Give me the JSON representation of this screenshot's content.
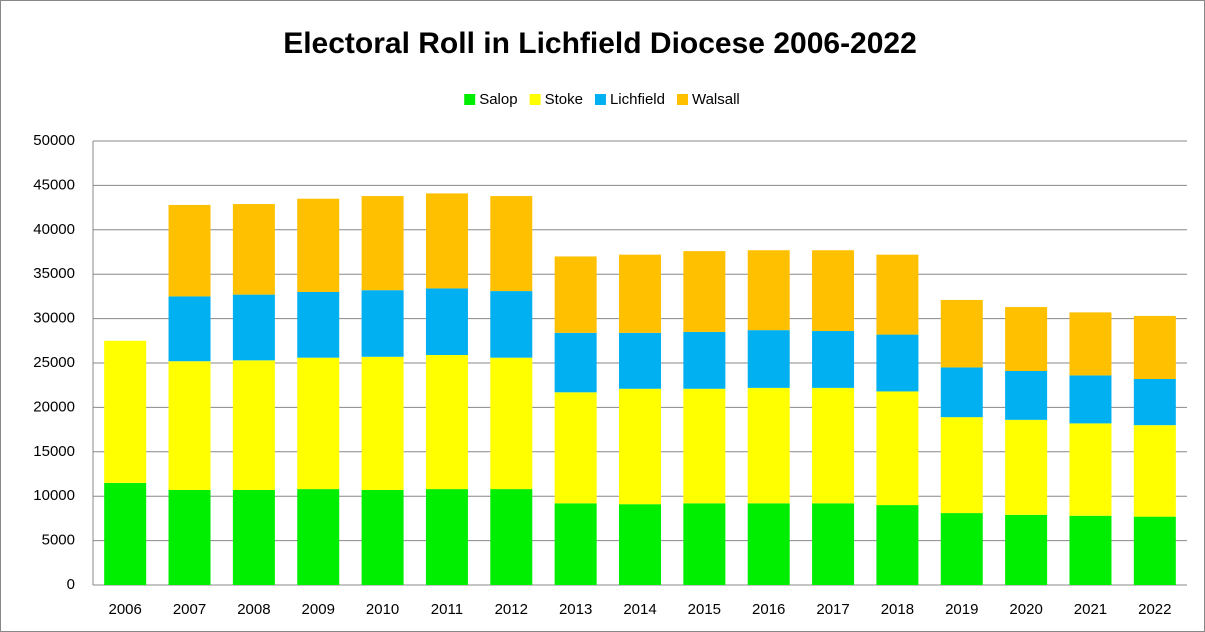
{
  "chart_data": {
    "type": "stacked_bar",
    "title": "Electoral Roll in Lichfield Diocese 2006-2022",
    "categories": [
      "2006",
      "2007",
      "2008",
      "2009",
      "2010",
      "2011",
      "2012",
      "2013",
      "2014",
      "2015",
      "2016",
      "2017",
      "2018",
      "2019",
      "2020",
      "2021",
      "2022"
    ],
    "series": [
      {
        "name": "Salop",
        "color": "#00ee00",
        "values": [
          11500,
          10700,
          10700,
          10800,
          10700,
          10800,
          10800,
          9200,
          9100,
          9200,
          9200,
          9200,
          9000,
          8100,
          7900,
          7800,
          7700
        ]
      },
      {
        "name": "Stoke",
        "color": "#ffff00",
        "values": [
          16000,
          14500,
          14600,
          14800,
          15000,
          15100,
          14800,
          12500,
          13000,
          12900,
          13000,
          13000,
          12800,
          10800,
          10700,
          10400,
          10300
        ]
      },
      {
        "name": "Lichfield",
        "color": "#00b0f0",
        "values": [
          0,
          7300,
          7400,
          7400,
          7500,
          7500,
          7500,
          6700,
          6300,
          6400,
          6500,
          6400,
          6400,
          5600,
          5500,
          5400,
          5200
        ]
      },
      {
        "name": "Walsall",
        "color": "#ffc000",
        "values": [
          0,
          10300,
          10200,
          10500,
          10600,
          10700,
          10700,
          8600,
          8800,
          9100,
          9000,
          9100,
          9000,
          7600,
          7200,
          7100,
          7100
        ]
      }
    ],
    "ylim": [
      0,
      50000
    ],
    "yticks": [
      0,
      5000,
      10000,
      15000,
      20000,
      25000,
      30000,
      35000,
      40000,
      45000,
      50000
    ],
    "grid": true,
    "legend": "top"
  }
}
